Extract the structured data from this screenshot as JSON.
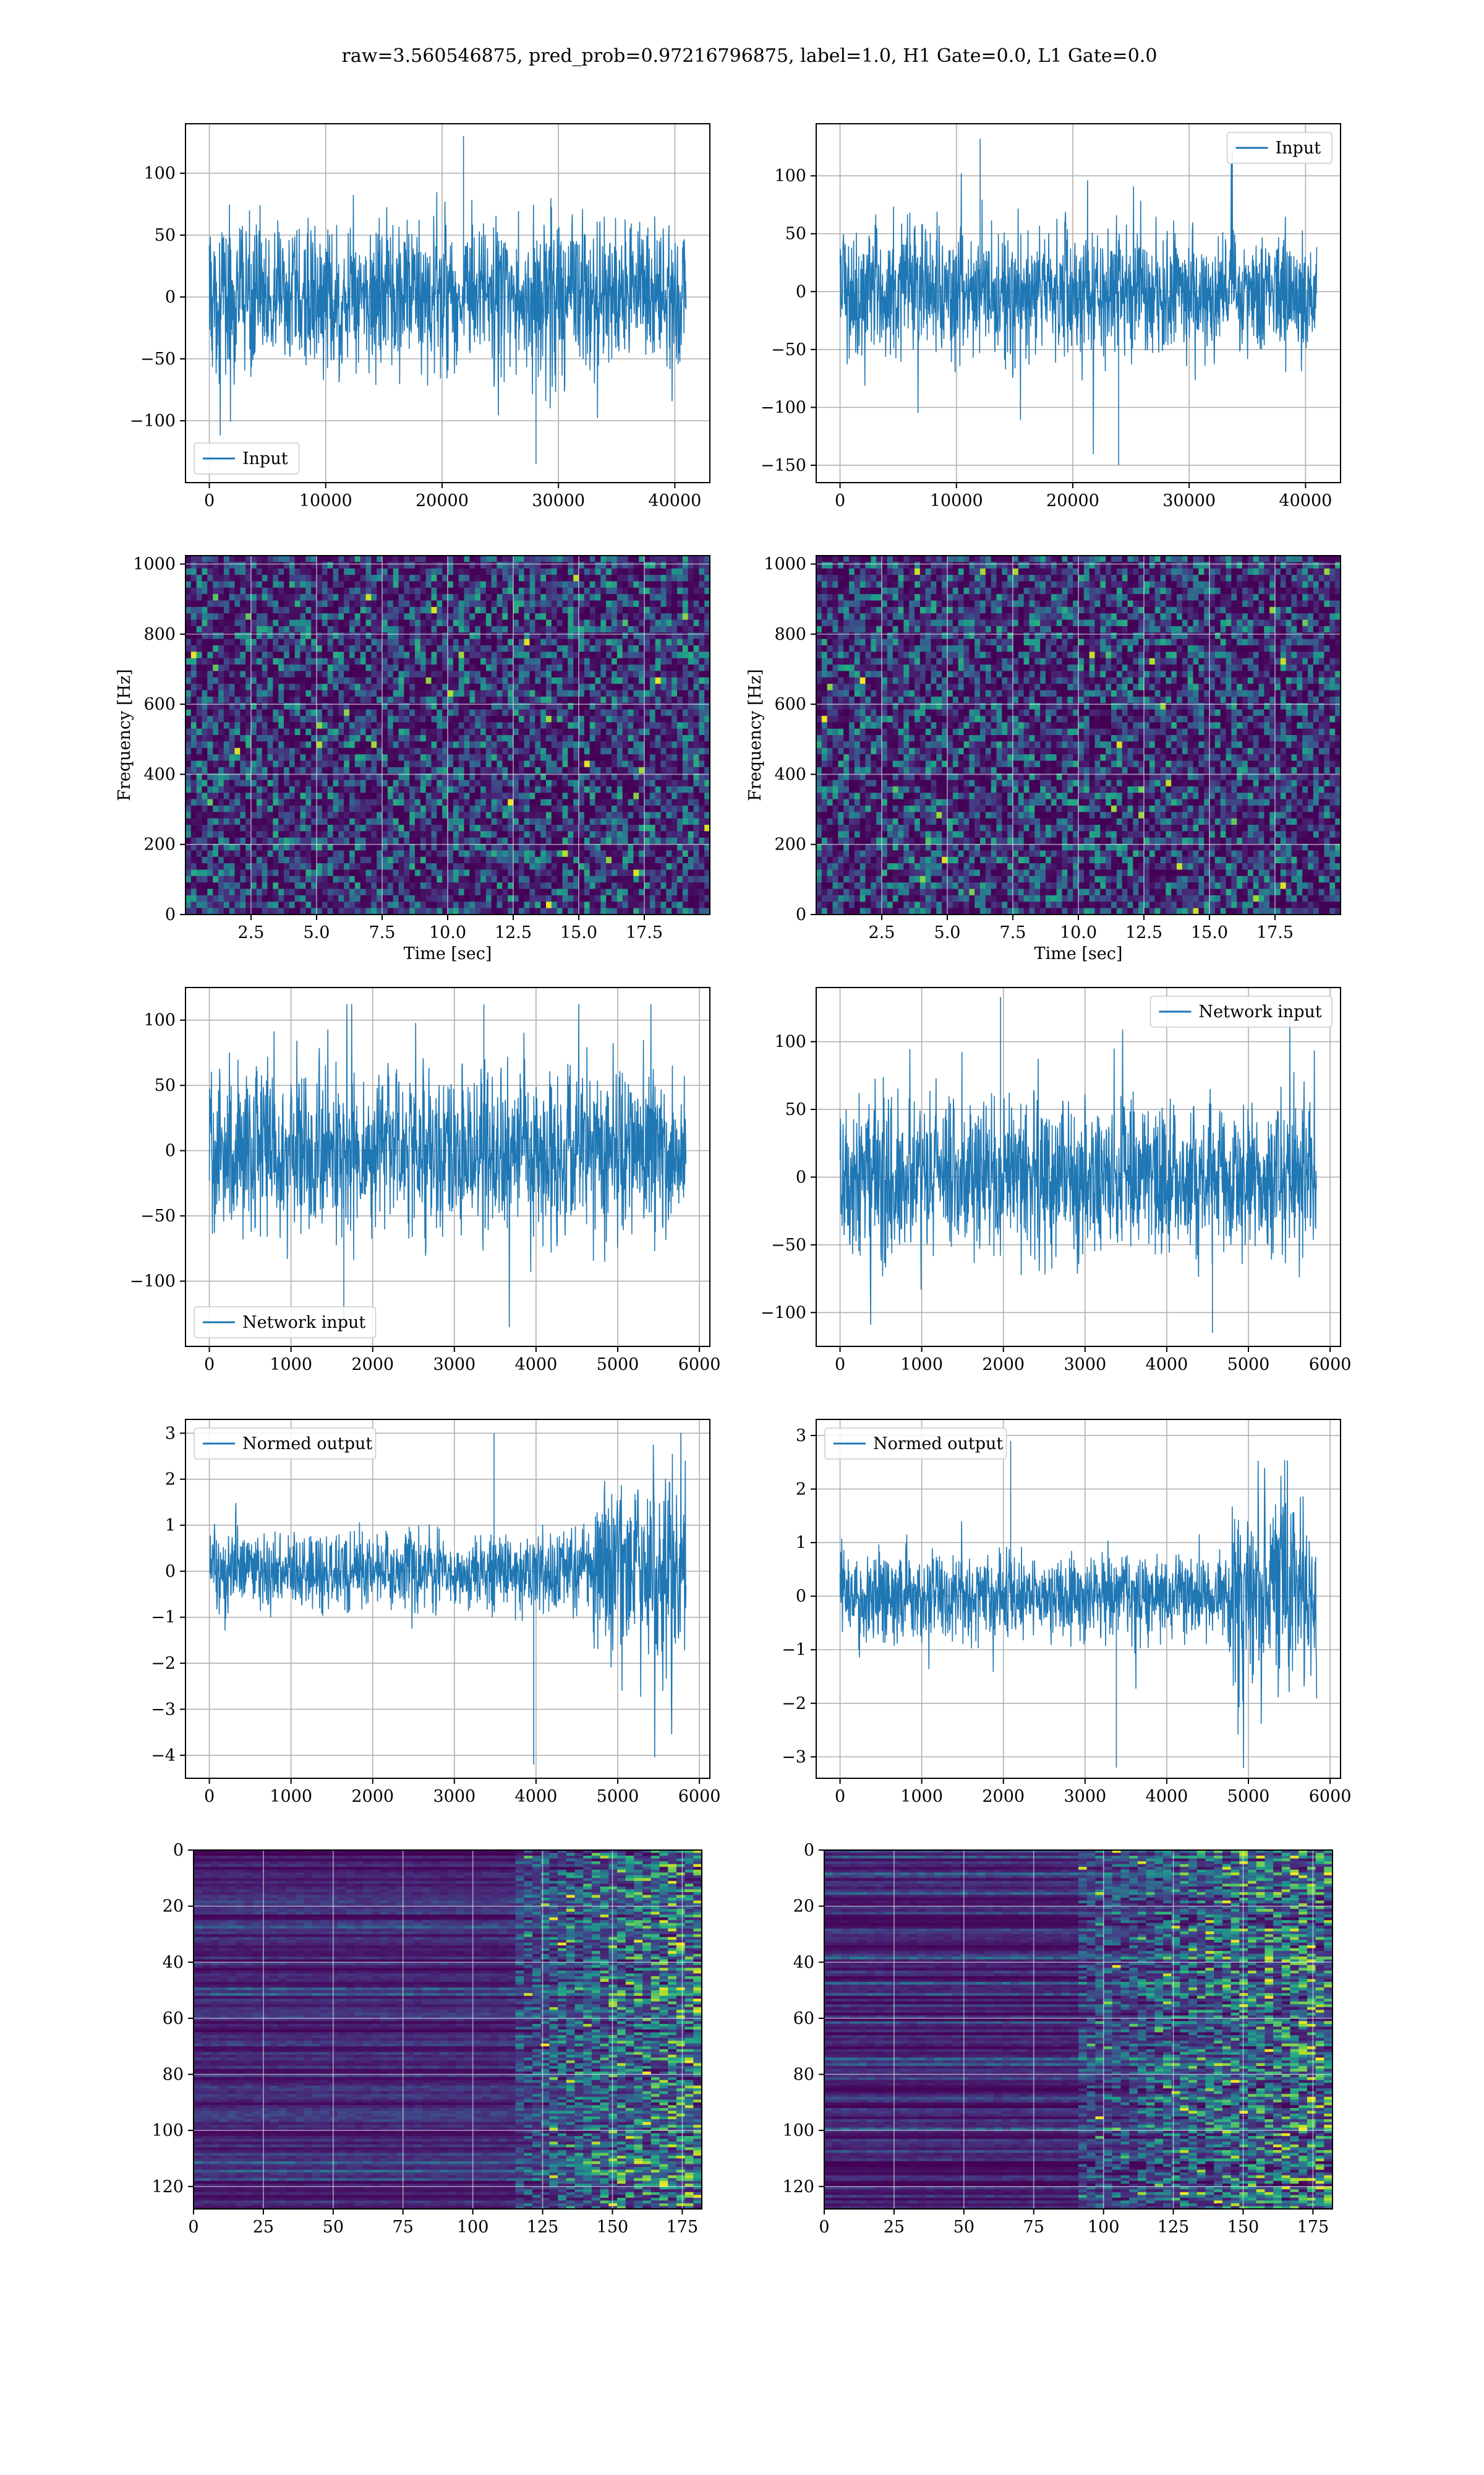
{
  "figure": {
    "suptitle": "raw=3.560546875, pred_prob=0.97216796875, label=1.0, H1 Gate=0.0, L1 Gate=0.0",
    "series_color": "#1f77b4"
  },
  "chart_data": [
    {
      "type": "line",
      "legend": "Input",
      "legend_loc": "lower-left",
      "x_range": [
        0,
        40960
      ],
      "xlim": [
        -2048,
        43008
      ],
      "ylim": [
        -150,
        140
      ],
      "xticks": [
        0,
        10000,
        20000,
        30000,
        40000
      ],
      "xtick_labels": [
        "0",
        "10000",
        "20000",
        "30000",
        "40000"
      ],
      "yticks": [
        -100,
        -50,
        0,
        50,
        100
      ],
      "ytick_labels": [
        "−100",
        "−50",
        "0",
        "50",
        "100"
      ],
      "amp": 30,
      "spike_max": 130,
      "spike_min": -135,
      "grid": true,
      "xlabel": "",
      "ylabel": ""
    },
    {
      "type": "line",
      "legend": "Input",
      "legend_loc": "top-right",
      "x_range": [
        0,
        40960
      ],
      "xlim": [
        -2048,
        43008
      ],
      "ylim": [
        -165,
        145
      ],
      "xticks": [
        0,
        10000,
        20000,
        30000,
        40000
      ],
      "xtick_labels": [
        "0",
        "10000",
        "20000",
        "30000",
        "40000"
      ],
      "yticks": [
        -150,
        -100,
        -50,
        0,
        50,
        100
      ],
      "ytick_labels": [
        "−150",
        "−100",
        "−50",
        "0",
        "50",
        "100"
      ],
      "amp": 28,
      "spike_max": 132,
      "spike_min": -150,
      "grid": true,
      "xlabel": "",
      "ylabel": ""
    },
    {
      "type": "heatmap",
      "xlim": [
        0,
        20
      ],
      "ylim": [
        0,
        1024
      ],
      "xticks": [
        2.5,
        5.0,
        7.5,
        10.0,
        12.5,
        15.0,
        17.5
      ],
      "xtick_labels": [
        "2.5",
        "5.0",
        "7.5",
        "10.0",
        "12.5",
        "15.0",
        "17.5"
      ],
      "yticks": [
        0,
        200,
        400,
        600,
        800,
        1000
      ],
      "ytick_labels": [
        "0",
        "200",
        "400",
        "600",
        "800",
        "1000"
      ],
      "xlabel": "Time [sec]",
      "ylabel": "Frequency [Hz]",
      "colormap": "viridis",
      "grid": true
    },
    {
      "type": "heatmap",
      "xlim": [
        0,
        20
      ],
      "ylim": [
        0,
        1024
      ],
      "xticks": [
        2.5,
        5.0,
        7.5,
        10.0,
        12.5,
        15.0,
        17.5
      ],
      "xtick_labels": [
        "2.5",
        "5.0",
        "7.5",
        "10.0",
        "12.5",
        "15.0",
        "17.5"
      ],
      "yticks": [
        0,
        200,
        400,
        600,
        800,
        1000
      ],
      "ytick_labels": [
        "0",
        "200",
        "400",
        "600",
        "800",
        "1000"
      ],
      "xlabel": "Time [sec]",
      "ylabel": "Frequency [Hz]",
      "colormap": "viridis",
      "grid": true
    },
    {
      "type": "line",
      "legend": "Network input",
      "legend_loc": "lower-left",
      "x_range": [
        0,
        5836
      ],
      "xlim": [
        -292,
        6128
      ],
      "ylim": [
        -150,
        125
      ],
      "xticks": [
        0,
        1000,
        2000,
        3000,
        4000,
        5000,
        6000
      ],
      "xtick_labels": [
        "0",
        "1000",
        "2000",
        "3000",
        "4000",
        "5000",
        "6000"
      ],
      "yticks": [
        -100,
        -50,
        0,
        50,
        100
      ],
      "ytick_labels": [
        "−100",
        "−50",
        "0",
        "50",
        "100"
      ],
      "amp": 32,
      "spike_max": 112,
      "spike_min": -135,
      "grid": true,
      "xlabel": "",
      "ylabel": ""
    },
    {
      "type": "line",
      "legend": "Network input",
      "legend_loc": "top-right",
      "x_range": [
        0,
        5836
      ],
      "xlim": [
        -292,
        6128
      ],
      "ylim": [
        -125,
        140
      ],
      "xticks": [
        0,
        1000,
        2000,
        3000,
        4000,
        5000,
        6000
      ],
      "xtick_labels": [
        "0",
        "1000",
        "2000",
        "3000",
        "4000",
        "5000",
        "6000"
      ],
      "yticks": [
        -100,
        -50,
        0,
        50,
        100
      ],
      "ytick_labels": [
        "−100",
        "−50",
        "0",
        "50",
        "100"
      ],
      "amp": 28,
      "spike_max": 133,
      "spike_min": -115,
      "grid": true,
      "xlabel": "",
      "ylabel": ""
    },
    {
      "type": "line",
      "legend": "Normed output",
      "legend_loc": "top-left",
      "x_range": [
        0,
        5836
      ],
      "xlim": [
        -292,
        6128
      ],
      "ylim": [
        -4.5,
        3.3
      ],
      "xticks": [
        0,
        1000,
        2000,
        3000,
        4000,
        5000,
        6000
      ],
      "xtick_labels": [
        "0",
        "1000",
        "2000",
        "3000",
        "4000",
        "5000",
        "6000"
      ],
      "yticks": [
        -4,
        -3,
        -2,
        -1,
        0,
        1,
        2,
        3
      ],
      "ytick_labels": [
        "−4",
        "−3",
        "−2",
        "−1",
        "0",
        "1",
        "2",
        "3"
      ],
      "amp": 0.4,
      "spike_max": 3.0,
      "spike_min": -4.2,
      "burst_start": 4700,
      "burst_amp": 1.0,
      "grid": true,
      "xlabel": "",
      "ylabel": ""
    },
    {
      "type": "line",
      "legend": "Normed output",
      "legend_loc": "top-left",
      "x_range": [
        0,
        5836
      ],
      "xlim": [
        -292,
        6128
      ],
      "ylim": [
        -3.4,
        3.3
      ],
      "xticks": [
        0,
        1000,
        2000,
        3000,
        4000,
        5000,
        6000
      ],
      "xtick_labels": [
        "0",
        "1000",
        "2000",
        "3000",
        "4000",
        "5000",
        "6000"
      ],
      "yticks": [
        -3,
        -2,
        -1,
        0,
        1,
        2,
        3
      ],
      "ytick_labels": [
        "−3",
        "−2",
        "−1",
        "0",
        "1",
        "2",
        "3"
      ],
      "amp": 0.38,
      "spike_max": 2.9,
      "spike_min": -3.2,
      "burst_start": 4750,
      "burst_amp": 0.95,
      "grid": true,
      "xlabel": "",
      "ylabel": ""
    },
    {
      "type": "heatmap",
      "xlim": [
        0,
        182
      ],
      "ylim": [
        128,
        0
      ],
      "xticks": [
        0,
        25,
        50,
        75,
        100,
        125,
        150,
        175
      ],
      "xtick_labels": [
        "0",
        "25",
        "50",
        "75",
        "100",
        "125",
        "150",
        "175"
      ],
      "yticks": [
        0,
        20,
        40,
        60,
        80,
        100,
        120
      ],
      "ytick_labels": [
        "0",
        "20",
        "40",
        "60",
        "80",
        "100",
        "120"
      ],
      "colormap": "viridis",
      "grid": true,
      "xlabel": "",
      "ylabel": ""
    },
    {
      "type": "heatmap",
      "xlim": [
        0,
        182
      ],
      "ylim": [
        128,
        0
      ],
      "xticks": [
        0,
        25,
        50,
        75,
        100,
        125,
        150,
        175
      ],
      "xtick_labels": [
        "0",
        "25",
        "50",
        "75",
        "100",
        "125",
        "150",
        "175"
      ],
      "yticks": [
        0,
        20,
        40,
        60,
        80,
        100,
        120
      ],
      "ytick_labels": [
        "0",
        "20",
        "40",
        "60",
        "80",
        "100",
        "120"
      ],
      "colormap": "viridis",
      "grid": true,
      "xlabel": "",
      "ylabel": ""
    }
  ]
}
